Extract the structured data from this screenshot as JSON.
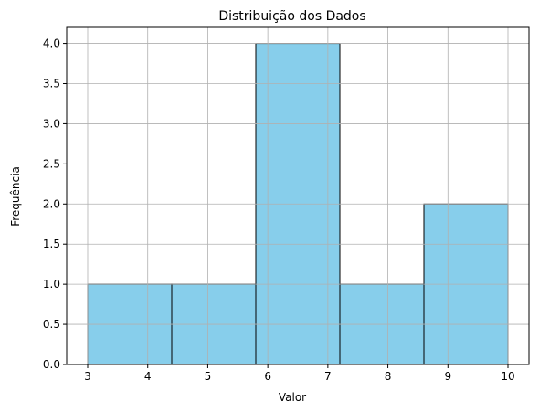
{
  "chart_data": {
    "type": "bar",
    "subtype": "histogram",
    "title": "Distribuição dos Dados",
    "xlabel": "Valor",
    "ylabel": "Frequência",
    "bins": [
      {
        "start": 3.0,
        "end": 4.4,
        "count": 1
      },
      {
        "start": 4.4,
        "end": 5.8,
        "count": 1
      },
      {
        "start": 5.8,
        "end": 7.2,
        "count": 4
      },
      {
        "start": 7.2,
        "end": 8.6,
        "count": 1
      },
      {
        "start": 8.6,
        "end": 10.0,
        "count": 2
      }
    ],
    "xlim": [
      2.65,
      10.35
    ],
    "ylim": [
      0,
      4.2
    ],
    "xticks": [
      3,
      4,
      5,
      6,
      7,
      8,
      9,
      10
    ],
    "xtick_labels": [
      "3",
      "4",
      "5",
      "6",
      "7",
      "8",
      "9",
      "10"
    ],
    "yticks": [
      0,
      0.5,
      1.0,
      1.5,
      2.0,
      2.5,
      3.0,
      3.5,
      4.0
    ],
    "ytick_labels": [
      "0.0",
      "0.5",
      "1.0",
      "1.5",
      "2.0",
      "2.5",
      "3.0",
      "3.5",
      "4.0"
    ],
    "grid": true,
    "colors": {
      "bar_fill": "#87ceeb",
      "bar_edge": "#000000",
      "grid": "#b0b0b0"
    }
  }
}
